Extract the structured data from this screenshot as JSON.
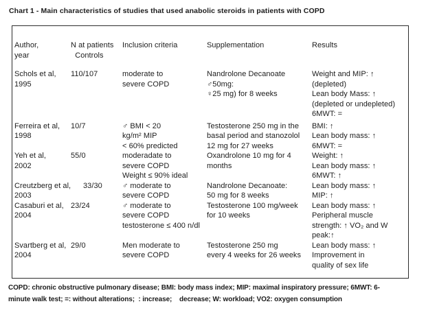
{
  "title": "Chart 1 - Main characteristics of studies that used anabolic steroids in patients with COPD",
  "table": {
    "headers": {
      "author": "Author,\nyear",
      "n": "N at patients\n  Controls",
      "inclusion": "Inclusion criteria",
      "supplementation": "Supplementation",
      "results": "Results"
    },
    "rows": [
      {
        "author": "Schols et al,\n1995",
        "n": "110/107",
        "inclusion": "moderate to\nsevere COPD",
        "supplementation": "Nandrolone Decanoate\n♂50mg:\n♀25 mg) for 8 weeks",
        "results": "Weight and MIP: ↑\n(depleted)\nLean body Mass: ↑\n(depleted or undepleted)\n6MWT: ="
      },
      {
        "author": "Ferreira et al,\n1998",
        "n": "10/7",
        "inclusion": "♂ BMI < 20\nkg/m² MIP\n< 60% predicted",
        "supplementation": "Testosterone 250 mg in the\nbasal period and stanozolol\n12 mg for 27 weeks",
        "results": "BMI: ↑\nLean body mass: ↑\n6MWT: ="
      },
      {
        "author": "Yeh et al,\n2002",
        "n": "55/0",
        "inclusion": "moderadate to\nsevere COPD\nWeight ≤ 90% ideal",
        "supplementation": "Oxandrolone 10 mg for 4\nmonths",
        "results": "Weight: ↑\nLean body mass: ↑\n6MWT: ↑"
      },
      {
        "author": "Creutzberg et al,\n2003",
        "n": "33/30",
        "inclusion": "♂ moderate to\nsevere COPD",
        "supplementation": "Nandrolone Decanoate:\n50 mg for 8 weeks",
        "results": "Lean body mass: ↑\nMIP: ↑"
      },
      {
        "author": "Casaburi et al,\n2004",
        "n": "23/24",
        "inclusion": "♂ moderate to\nsevere COPD\ntestosterone ≤ 400 n/dl",
        "supplementation": "Testosterone 100 mg/week\nfor 10 weeks",
        "results": "Lean body mass: ↑\nPeripheral muscle\nstrength: ↑ VO₂ and W\npeak:↑"
      },
      {
        "author": "Svartberg et al,\n2004",
        "n": "29/0",
        "inclusion": "Men moderate to\nsevere COPD",
        "supplementation": "Testosterone 250 mg\nevery 4 weeks for 26 weeks",
        "results": "Lean body mass: ↑\nImprovement in\nquality of sex life"
      }
    ]
  },
  "footnote": "COPD: chronic obstructive pulmonary disease; BMI: body mass index; MIP: maximal inspiratory pressure; 6MWT: 6-\nminute walk test; =: without alterations;  : increase;    decrease; W: workload; VO2: oxygen consumption"
}
